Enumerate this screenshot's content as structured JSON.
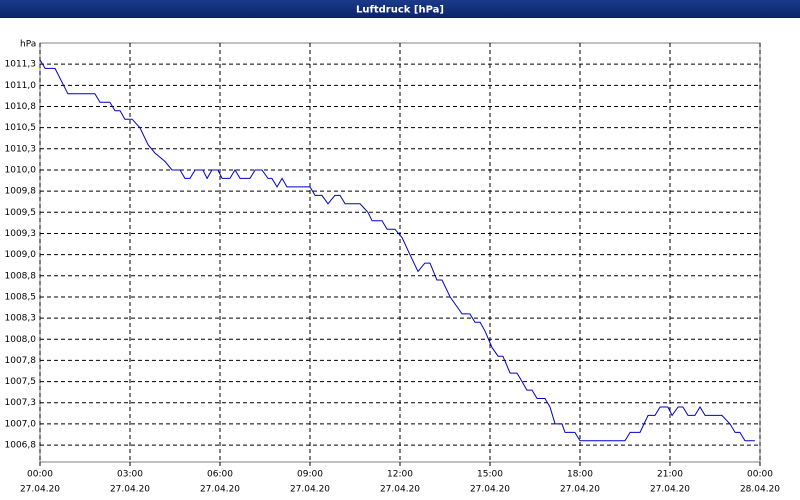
{
  "chart_data": {
    "type": "line",
    "title": "Luftdruck [hPa]",
    "ylabel": "hPa",
    "x": [
      0,
      0.17,
      0.5,
      0.93,
      1.83,
      2,
      2.33,
      2.5,
      2.67,
      2.83,
      3.07,
      3.33,
      3.6,
      3.83,
      4.17,
      4.4,
      4.67,
      4.83,
      5,
      5.17,
      5.43,
      5.57,
      5.73,
      5.93,
      6.07,
      6.33,
      6.5,
      6.67,
      7,
      7.17,
      7.4,
      7.6,
      7.73,
      7.9,
      8.07,
      8.23,
      9,
      9.17,
      9.4,
      9.6,
      9.83,
      10,
      10.17,
      10.67,
      10.93,
      11.07,
      11.4,
      11.57,
      11.83,
      12.07,
      12.33,
      12.6,
      12.83,
      13,
      13.23,
      13.4,
      13.67,
      14.07,
      14.33,
      14.5,
      14.67,
      14.83,
      15.07,
      15.27,
      15.43,
      15.67,
      15.9,
      16.07,
      16.23,
      16.4,
      16.57,
      16.83,
      17,
      17.17,
      17.4,
      17.5,
      17.83,
      18,
      19.5,
      19.67,
      20,
      20.27,
      20.5,
      20.67,
      20.93,
      21.07,
      21.27,
      21.43,
      21.6,
      21.83,
      22,
      22.17,
      22.73,
      23,
      23.17,
      23.33,
      23.5,
      23.83
    ],
    "y": [
      1011.3,
      1011.2,
      1011.2,
      1010.9,
      1010.9,
      1010.8,
      1010.8,
      1010.7,
      1010.7,
      1010.6,
      1010.6,
      1010.5,
      1010.3,
      1010.2,
      1010.1,
      1010.0,
      1010.0,
      1009.9,
      1009.9,
      1010.0,
      1010.0,
      1009.9,
      1010.0,
      1010.0,
      1009.9,
      1009.9,
      1010.0,
      1009.9,
      1009.9,
      1010.0,
      1010.0,
      1009.9,
      1009.9,
      1009.8,
      1009.9,
      1009.8,
      1009.8,
      1009.7,
      1009.7,
      1009.6,
      1009.7,
      1009.7,
      1009.6,
      1009.6,
      1009.5,
      1009.4,
      1009.4,
      1009.3,
      1009.3,
      1009.2,
      1009.0,
      1008.8,
      1008.9,
      1008.9,
      1008.7,
      1008.7,
      1008.5,
      1008.3,
      1008.3,
      1008.2,
      1008.2,
      1008.1,
      1007.9,
      1007.8,
      1007.8,
      1007.6,
      1007.6,
      1007.5,
      1007.4,
      1007.4,
      1007.3,
      1007.3,
      1007.2,
      1007.0,
      1007.0,
      1006.9,
      1006.9,
      1006.8,
      1006.8,
      1006.9,
      1006.9,
      1007.1,
      1007.1,
      1007.2,
      1007.2,
      1007.1,
      1007.2,
      1007.2,
      1007.1,
      1007.1,
      1007.2,
      1007.1,
      1007.1,
      1007.0,
      1006.9,
      1006.9,
      1006.8,
      1006.8
    ],
    "color": "#0000cc",
    "xlim": [
      0,
      24
    ],
    "xticks": [
      {
        "value": 0,
        "label": "00:00"
      },
      {
        "value": 3,
        "label": "03:00"
      },
      {
        "value": 6,
        "label": "06:00"
      },
      {
        "value": 9,
        "label": "09:00"
      },
      {
        "value": 12,
        "label": "12:00"
      },
      {
        "value": 15,
        "label": "15:00"
      },
      {
        "value": 18,
        "label": "18:00"
      },
      {
        "value": 21,
        "label": "21:00"
      },
      {
        "value": 24,
        "label": "00:00"
      }
    ],
    "xtick_dates": [
      "27.04.20",
      "27.04.20",
      "27.04.20",
      "27.04.20",
      "27.04.20",
      "27.04.20",
      "27.04.20",
      "27.04.20",
      "28.04.20"
    ],
    "ylim": [
      1006.55,
      1011.5
    ],
    "yticks": [
      {
        "value": 1006.75,
        "label": "1006,8"
      },
      {
        "value": 1007.0,
        "label": "1007,0"
      },
      {
        "value": 1007.25,
        "label": "1007,3"
      },
      {
        "value": 1007.5,
        "label": "1007,5"
      },
      {
        "value": 1007.75,
        "label": "1007,8"
      },
      {
        "value": 1008.0,
        "label": "1008,0"
      },
      {
        "value": 1008.25,
        "label": "1008,3"
      },
      {
        "value": 1008.5,
        "label": "1008,5"
      },
      {
        "value": 1008.75,
        "label": "1008,8"
      },
      {
        "value": 1009.0,
        "label": "1009,0"
      },
      {
        "value": 1009.25,
        "label": "1009,3"
      },
      {
        "value": 1009.5,
        "label": "1009,5"
      },
      {
        "value": 1009.75,
        "label": "1009,8"
      },
      {
        "value": 1010.0,
        "label": "1010,0"
      },
      {
        "value": 1010.25,
        "label": "1010,3"
      },
      {
        "value": 1010.5,
        "label": "1010,5"
      },
      {
        "value": 1010.75,
        "label": "1010,8"
      },
      {
        "value": 1011.0,
        "label": "1011,0"
      },
      {
        "value": 1011.25,
        "label": "1011,3"
      }
    ],
    "grid": true
  }
}
